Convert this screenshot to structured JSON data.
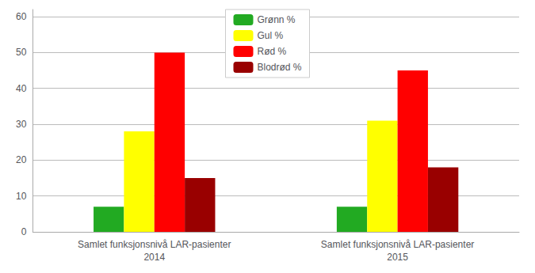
{
  "chart_data": {
    "type": "bar",
    "categories": [
      "Samlet funksjonsnivå LAR-pasienter\n2014",
      "Samlet funksjonsnivå LAR-pasienter\n2015"
    ],
    "series": [
      {
        "name": "Grønn %",
        "color": "#22aa22",
        "values": [
          7,
          7
        ]
      },
      {
        "name": "Gul %",
        "color": "#ffff00",
        "values": [
          28,
          31
        ]
      },
      {
        "name": "Rød %",
        "color": "#ff0000",
        "values": [
          50,
          45
        ]
      },
      {
        "name": "Blodrød %",
        "color": "#990000",
        "values": [
          15,
          18
        ]
      }
    ],
    "ylim": [
      0,
      62
    ],
    "yticks": [
      0,
      10,
      20,
      30,
      40,
      50,
      60
    ],
    "grid": true,
    "legend": "upper center"
  }
}
